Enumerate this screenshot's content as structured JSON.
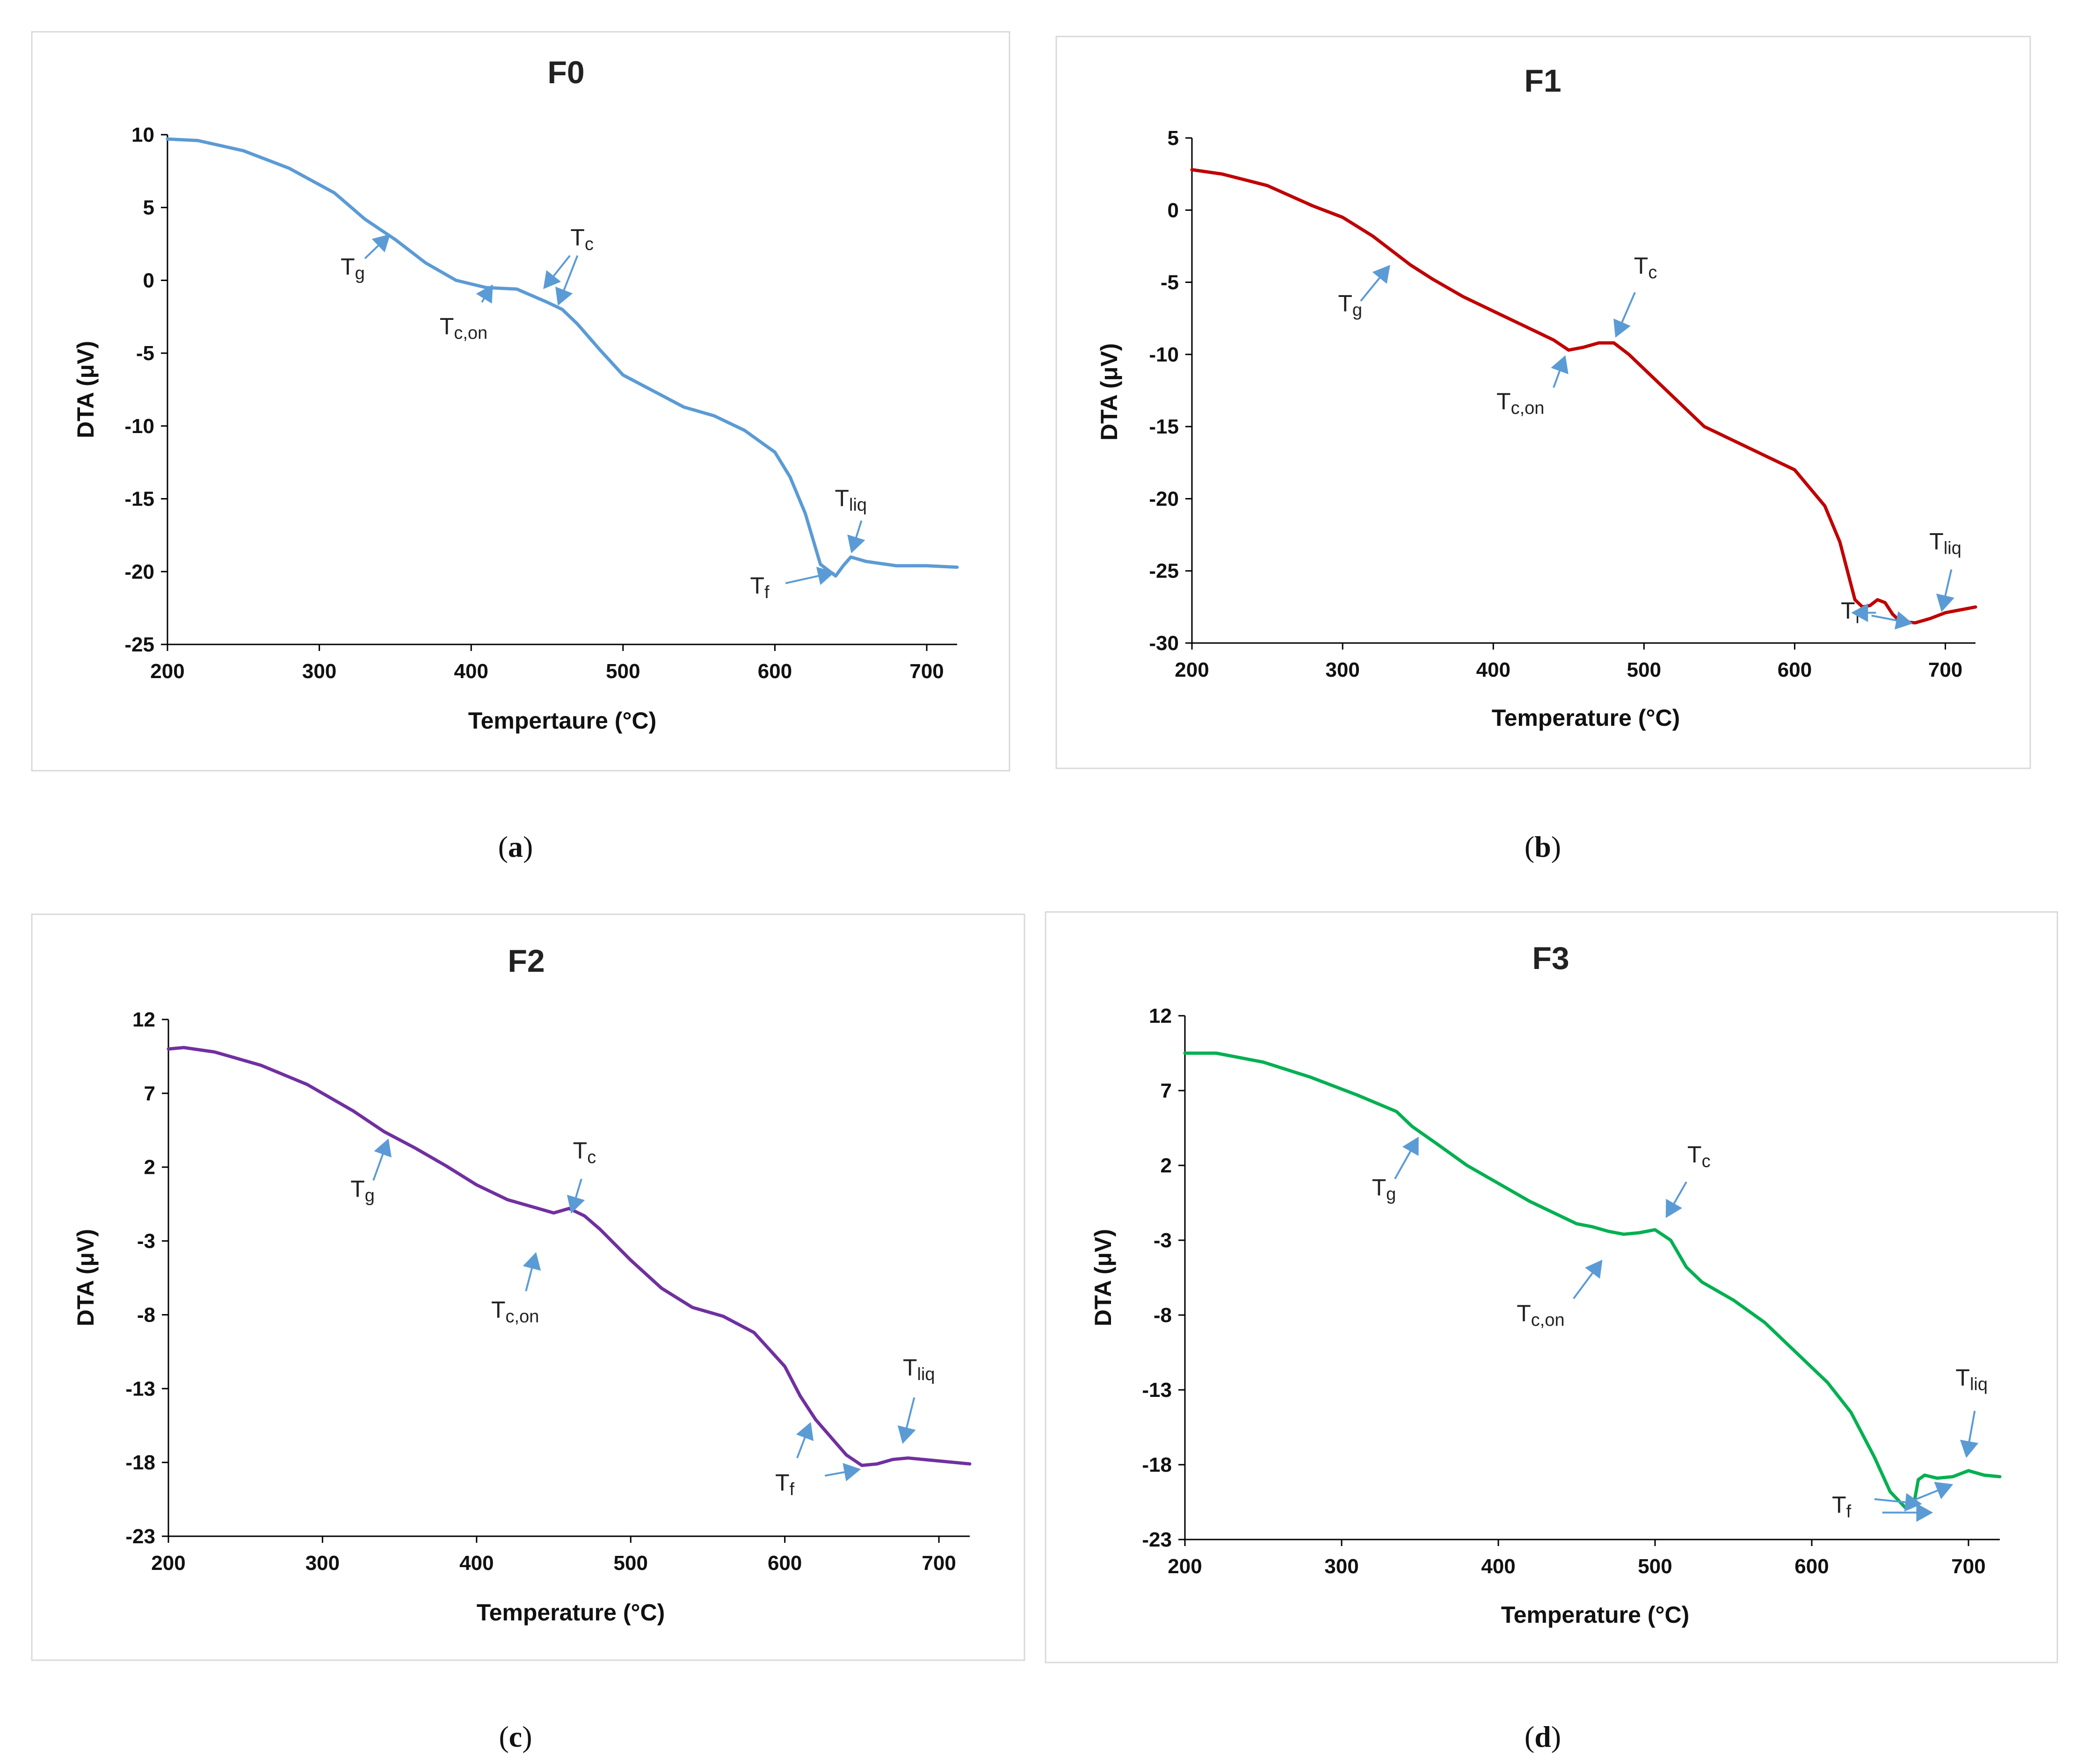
{
  "figure": {
    "captions": [
      "(a)",
      "(b)",
      "(c)",
      "(d)"
    ],
    "arrow_color": "#5b9bd5"
  },
  "chart_data": [
    {
      "type": "line",
      "title": "F0",
      "caption_letter": "a",
      "xlabel": "Tempertaure (°C)",
      "ylabel": "DTA (μV)",
      "xlim": [
        200,
        720
      ],
      "ylim": [
        -25,
        10
      ],
      "xticks": [
        200,
        300,
        400,
        500,
        600,
        700
      ],
      "yticks": [
        10,
        5,
        0,
        -5,
        -10,
        -15,
        -20,
        -25
      ],
      "color": "#5b9bd5",
      "series": [
        {
          "name": "F0",
          "x": [
            200,
            220,
            250,
            280,
            310,
            330,
            350,
            370,
            390,
            410,
            430,
            450,
            460,
            470,
            485,
            500,
            520,
            540,
            560,
            580,
            600,
            610,
            620,
            630,
            640,
            645,
            650,
            660,
            680,
            700,
            720
          ],
          "y": [
            9.7,
            9.6,
            8.9,
            7.7,
            6.0,
            4.2,
            2.8,
            1.2,
            0.0,
            -0.5,
            -0.6,
            -1.5,
            -2.0,
            -3.0,
            -4.8,
            -6.5,
            -7.6,
            -8.7,
            -9.3,
            -10.3,
            -11.8,
            -13.5,
            -16.0,
            -19.5,
            -20.3,
            -19.6,
            -19.0,
            -19.3,
            -19.6,
            -19.6,
            -19.7
          ]
        }
      ],
      "annotations": [
        {
          "main": "T",
          "sub": "g",
          "x": 322,
          "y": 0.4,
          "arrows": [
            [
              330,
              1.5,
              345,
              3.0
            ]
          ]
        },
        {
          "main": "T",
          "sub": "c,on",
          "x": 395,
          "y": -3.7,
          "arrows": [
            [
              407,
              -1.5,
              413,
              -0.5
            ]
          ]
        },
        {
          "main": "T",
          "sub": "c",
          "x": 473,
          "y": 2.4,
          "arrows": [
            [
              465,
              1.7,
              449,
              -0.4
            ],
            [
              470,
              1.7,
              458,
              -1.5
            ]
          ]
        },
        {
          "main": "T",
          "sub": "liq",
          "x": 650,
          "y": -15.5,
          "arrows": [
            [
              657,
              -16.5,
              651,
              -18.5
            ]
          ]
        },
        {
          "main": "T",
          "sub": "f",
          "x": 590,
          "y": -21.5,
          "arrows": [
            [
              607,
              -20.8,
              637,
              -20.1
            ]
          ]
        }
      ]
    },
    {
      "type": "line",
      "title": "F1",
      "caption_letter": "b",
      "xlabel": "Temperature (°C)",
      "ylabel": "DTA (μV)",
      "xlim": [
        200,
        720
      ],
      "ylim": [
        -30,
        5
      ],
      "xticks": [
        200,
        300,
        400,
        500,
        600,
        700
      ],
      "yticks": [
        5,
        0,
        -5,
        -10,
        -15,
        -20,
        -25,
        -30
      ],
      "color": "#c00000",
      "series": [
        {
          "name": "F1",
          "x": [
            200,
            220,
            250,
            280,
            300,
            320,
            335,
            345,
            360,
            380,
            400,
            420,
            440,
            450,
            460,
            470,
            480,
            490,
            500,
            520,
            540,
            560,
            580,
            600,
            620,
            630,
            640,
            645,
            650,
            655,
            660,
            665,
            670,
            680,
            690,
            700,
            720
          ],
          "y": [
            2.8,
            2.5,
            1.7,
            0.3,
            -0.5,
            -1.8,
            -3.0,
            -3.8,
            -4.8,
            -6.0,
            -7.0,
            -8.0,
            -9.0,
            -9.7,
            -9.5,
            -9.2,
            -9.2,
            -10.0,
            -11.0,
            -13.0,
            -15.0,
            -16.0,
            -17.0,
            -18.0,
            -20.5,
            -23.0,
            -27.0,
            -27.5,
            -27.4,
            -27.0,
            -27.2,
            -28.0,
            -28.5,
            -28.6,
            -28.3,
            -27.9,
            -27.5
          ]
        }
      ],
      "annotations": [
        {
          "main": "T",
          "sub": "g",
          "x": 305,
          "y": -7.0,
          "arrows": [
            [
              312,
              -6.3,
              330,
              -4.0
            ]
          ]
        },
        {
          "main": "T",
          "sub": "c",
          "x": 501,
          "y": -4.4,
          "arrows": [
            [
              494,
              -5.7,
              482,
              -8.6
            ]
          ]
        },
        {
          "main": "T",
          "sub": "c,on",
          "x": 418,
          "y": -13.8,
          "arrows": [
            [
              440,
              -12.3,
              447,
              -10.3
            ]
          ]
        },
        {
          "main": "T",
          "sub": "liq",
          "x": 700,
          "y": -23.5,
          "arrows": [
            [
              704,
              -24.9,
              698,
              -27.6
            ]
          ]
        },
        {
          "main": "T",
          "sub": "f",
          "x": 637,
          "y": -28.3,
          "arrows": [
            [
              654,
              -27.9,
              640,
              -27.9
            ],
            [
              651,
              -28.1,
              676,
              -28.6
            ]
          ]
        }
      ]
    },
    {
      "type": "line",
      "title": "F2",
      "caption_letter": "c",
      "xlabel": "Temperature (°C)",
      "ylabel": "DTA (μV)",
      "xlim": [
        200,
        720
      ],
      "ylim": [
        -23,
        12
      ],
      "xticks": [
        200,
        300,
        400,
        500,
        600,
        700
      ],
      "yticks": [
        12,
        7,
        2,
        -3,
        -8,
        -13,
        -18,
        -23
      ],
      "color": "#7030a0",
      "series": [
        {
          "name": "F2",
          "x": [
            200,
            210,
            230,
            260,
            290,
            320,
            340,
            360,
            380,
            400,
            420,
            440,
            450,
            460,
            470,
            480,
            500,
            520,
            540,
            560,
            580,
            600,
            610,
            620,
            630,
            640,
            650,
            660,
            670,
            680,
            700,
            720
          ],
          "y": [
            10.0,
            10.1,
            9.8,
            8.9,
            7.6,
            5.8,
            4.4,
            3.3,
            2.1,
            0.8,
            -0.2,
            -0.8,
            -1.1,
            -0.8,
            -1.3,
            -2.2,
            -4.3,
            -6.2,
            -7.5,
            -8.1,
            -9.2,
            -11.5,
            -13.5,
            -15.1,
            -16.3,
            -17.5,
            -18.2,
            -18.1,
            -17.8,
            -17.7,
            -17.9,
            -18.1
          ]
        }
      ],
      "annotations": [
        {
          "main": "T",
          "sub": "g",
          "x": 326,
          "y": 0.0,
          "arrows": [
            [
              333,
              1.1,
              342,
              3.7
            ]
          ]
        },
        {
          "main": "T",
          "sub": "c",
          "x": 470,
          "y": 2.6,
          "arrows": [
            [
              468,
              1.2,
              462,
              -0.9
            ]
          ]
        },
        {
          "main": "T",
          "sub": "c,on",
          "x": 425,
          "y": -8.2,
          "arrows": [
            [
              432,
              -6.4,
              438,
              -4.0
            ]
          ]
        },
        {
          "main": "T",
          "sub": "liq",
          "x": 687,
          "y": -12.1,
          "arrows": [
            [
              684,
              -13.6,
              677,
              -16.5
            ]
          ]
        },
        {
          "main": "T",
          "sub": "f",
          "x": 600,
          "y": -19.9,
          "arrows": [
            [
              608,
              -17.7,
              616,
              -15.5
            ],
            [
              626,
              -18.9,
              647,
              -18.5
            ]
          ]
        }
      ]
    },
    {
      "type": "line",
      "title": "F3",
      "caption_letter": "d",
      "xlabel": "Temperature (°C)",
      "ylabel": "DTA (μV)",
      "xlim": [
        200,
        720
      ],
      "ylim": [
        -23,
        12
      ],
      "xticks": [
        200,
        300,
        400,
        500,
        600,
        700
      ],
      "yticks": [
        12,
        7,
        2,
        -3,
        -8,
        -13,
        -18,
        -23
      ],
      "color": "#00b050",
      "series": [
        {
          "name": "F3",
          "x": [
            200,
            220,
            250,
            280,
            310,
            335,
            345,
            360,
            380,
            400,
            420,
            440,
            450,
            460,
            470,
            480,
            490,
            500,
            510,
            520,
            530,
            550,
            570,
            590,
            610,
            625,
            640,
            650,
            660,
            665,
            668,
            672,
            680,
            690,
            700,
            710,
            720
          ],
          "y": [
            9.5,
            9.5,
            8.9,
            7.9,
            6.7,
            5.6,
            4.6,
            3.5,
            2.0,
            0.8,
            -0.4,
            -1.4,
            -1.9,
            -2.1,
            -2.4,
            -2.6,
            -2.5,
            -2.3,
            -3.0,
            -4.8,
            -5.8,
            -7.0,
            -8.5,
            -10.5,
            -12.5,
            -14.5,
            -17.5,
            -19.8,
            -20.9,
            -20.7,
            -19.0,
            -18.7,
            -18.9,
            -18.8,
            -18.4,
            -18.7,
            -18.8
          ]
        }
      ],
      "annotations": [
        {
          "main": "T",
          "sub": "g",
          "x": 327,
          "y": 0.0,
          "arrows": [
            [
              334,
              1.1,
              348,
              3.7
            ]
          ]
        },
        {
          "main": "T",
          "sub": "c",
          "x": 528,
          "y": 2.2,
          "arrows": [
            [
              520,
              0.9,
              508,
              -1.3
            ]
          ]
        },
        {
          "main": "T",
          "sub": "c,on",
          "x": 427,
          "y": -8.4,
          "arrows": [
            [
              448,
              -6.9,
              465,
              -4.5
            ]
          ]
        },
        {
          "main": "T",
          "sub": "liq",
          "x": 702,
          "y": -12.7,
          "arrows": [
            [
              704,
              -14.4,
              699,
              -17.3
            ]
          ]
        },
        {
          "main": "T",
          "sub": "f",
          "x": 619,
          "y": -21.2,
          "arrows": [
            [
              640,
              -20.3,
              668,
              -20.6
            ],
            [
              645,
              -21.2,
              675,
              -21.2
            ],
            [
              662,
              -20.5,
              688,
              -19.4
            ]
          ]
        }
      ]
    }
  ]
}
